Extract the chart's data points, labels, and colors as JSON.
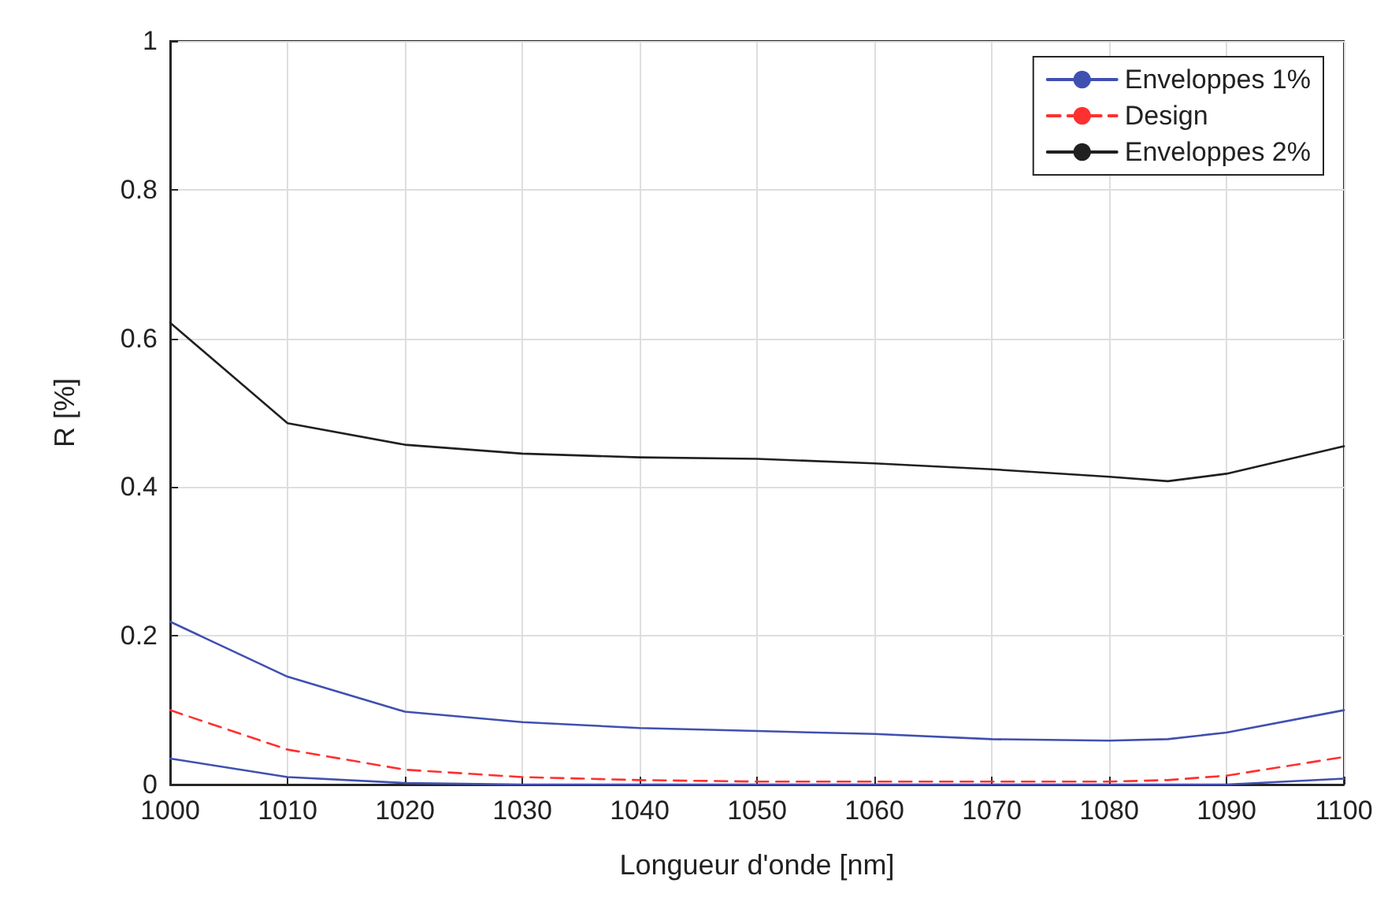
{
  "chart_data": {
    "type": "line",
    "xlabel": "Longueur d'onde [nm]",
    "ylabel": "R [%]",
    "xlim": [
      1000,
      1100
    ],
    "xticks": [
      1000,
      1010,
      1020,
      1030,
      1040,
      1050,
      1060,
      1070,
      1080,
      1090,
      1100
    ],
    "ylim": [
      0,
      1
    ],
    "yticks": [
      0,
      0.2,
      0.4,
      0.6,
      0.8,
      1
    ],
    "grid": true,
    "legend": "top right",
    "marker": "none",
    "x": [
      1000,
      1010,
      1020,
      1030,
      1040,
      1050,
      1060,
      1070,
      1080,
      1085,
      1090,
      1100
    ],
    "series": [
      {
        "name": "Enveloppes 1%",
        "color": "#4050b0",
        "line_style": "solid",
        "values": [
          0.219,
          0.145,
          0.098,
          0.084,
          0.076,
          0.072,
          0.068,
          0.061,
          0.059,
          0.061,
          0.07,
          0.1
        ]
      },
      {
        "name": "Design",
        "color": "#ff3030",
        "line_style": "dashed",
        "values": [
          0.1,
          0.047,
          0.02,
          0.01,
          0.006,
          0.004,
          0.004,
          0.004,
          0.004,
          0.006,
          0.012,
          0.037
        ]
      },
      {
        "name": "Enveloppes 2%",
        "color": "#202020",
        "line_style": "solid",
        "values": [
          0.621,
          0.486,
          0.457,
          0.445,
          0.44,
          0.438,
          0.432,
          0.424,
          0.414,
          0.408,
          0.418,
          0.455
        ]
      },
      {
        "color": "#4050b0",
        "line_style": "solid",
        "values": [
          0.035,
          0.01,
          0.002,
          0,
          0,
          0,
          0,
          0,
          0,
          0,
          0,
          0.008
        ]
      }
    ]
  }
}
